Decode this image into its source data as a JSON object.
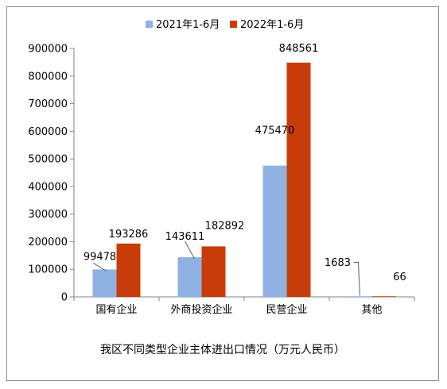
{
  "chart_data": {
    "type": "bar",
    "title": "我区不同类型企业主体进出口情况（万元人民币）",
    "categories": [
      "国有企业",
      "外商投资企业",
      "民营企业",
      "其他"
    ],
    "series": [
      {
        "name": "2021年1-6月",
        "values": [
          99478,
          143611,
          475470,
          1683
        ],
        "color": "#8eb3e2"
      },
      {
        "name": "2022年1-6月",
        "values": [
          193286,
          182892,
          848561,
          66
        ],
        "color": "#c83c0a"
      }
    ],
    "ylim": [
      0,
      900000
    ],
    "yticks": [
      "0",
      "100000",
      "200000",
      "300000",
      "400000",
      "500000",
      "600000",
      "700000",
      "800000",
      "900000"
    ],
    "legend_position": "top",
    "grid": false
  }
}
